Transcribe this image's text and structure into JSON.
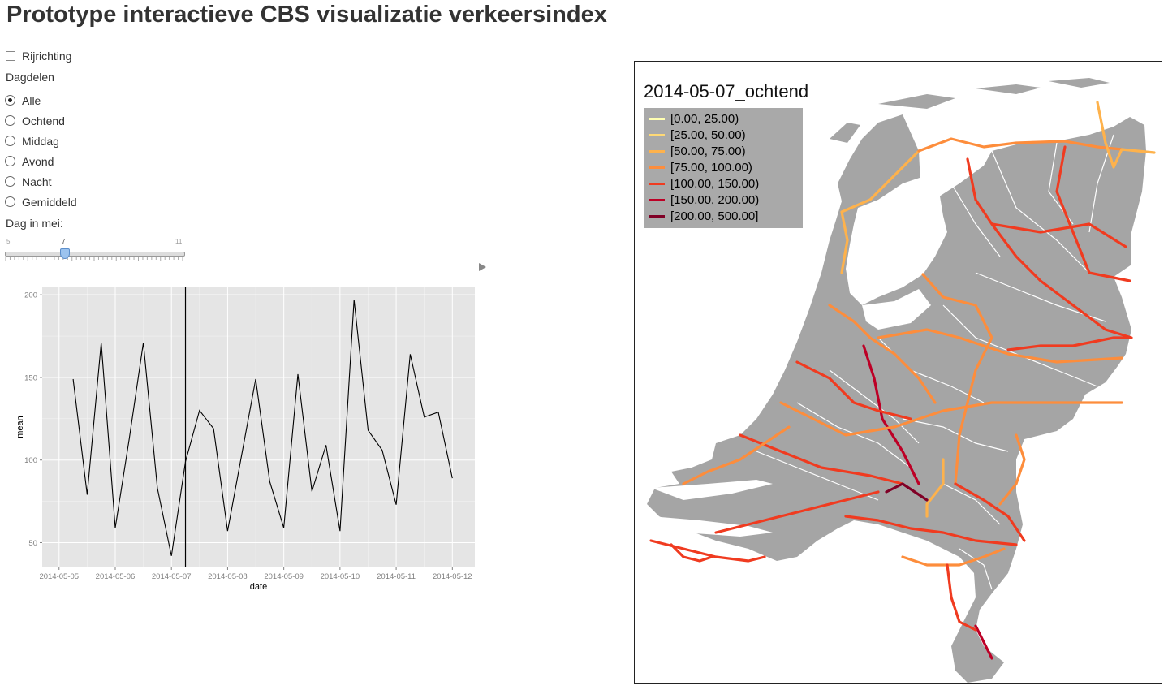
{
  "title": "Prototype interactieve CBS visualizatie verkeersindex",
  "rijrichting": {
    "label": "Rijrichting",
    "checked": false
  },
  "dagdelen": {
    "label": "Dagdelen",
    "options": [
      "Alle",
      "Ochtend",
      "Middag",
      "Avond",
      "Nacht",
      "Gemiddeld"
    ],
    "selected": "Alle"
  },
  "slider": {
    "label": "Dag in mei:",
    "min": "5",
    "max": "11",
    "value": "7"
  },
  "chart_data": {
    "type": "line",
    "xlabel": "date",
    "ylabel": "mean",
    "x_ticks": [
      "2014-05-05",
      "2014-05-06",
      "2014-05-07",
      "2014-05-08",
      "2014-05-09",
      "2014-05-10",
      "2014-05-11",
      "2014-05-12"
    ],
    "y_ticks": [
      50,
      100,
      150,
      200
    ],
    "xlim": [
      -0.3,
      7.4
    ],
    "ylim": [
      35,
      205
    ],
    "vline_day": 2.25,
    "x": [
      0.25,
      0.5,
      0.75,
      1.0,
      1.25,
      1.5,
      1.75,
      2.0,
      2.25,
      2.5,
      2.75,
      3.0,
      3.25,
      3.5,
      3.75,
      4.0,
      4.25,
      4.5,
      4.75,
      5.0,
      5.25,
      5.5,
      5.75,
      6.0,
      6.25,
      6.5,
      6.75,
      7.0
    ],
    "values": [
      149,
      79,
      171,
      59,
      113,
      171,
      83,
      42,
      99,
      130,
      119,
      57,
      103,
      149,
      87,
      59,
      152,
      81,
      109,
      57,
      197,
      118,
      106,
      73,
      164,
      126,
      129,
      89
    ],
    "grid": true
  },
  "map": {
    "title": "2014-05-07_ochtend",
    "land_color": "#a5a5a5",
    "legend": [
      {
        "label": "[0.00, 25.00)",
        "color": "#ffffb2"
      },
      {
        "label": "[25.00, 50.00)",
        "color": "#fed976"
      },
      {
        "label": "[50.00, 75.00)",
        "color": "#feb24c"
      },
      {
        "label": "[75.00, 100.00)",
        "color": "#fd8d3c"
      },
      {
        "label": "[100.00, 150.00)",
        "color": "#f03b20"
      },
      {
        "label": "[150.00, 200.00)",
        "color": "#bd0026"
      },
      {
        "label": "[200.00, 500.00]",
        "color": "#800026"
      }
    ]
  }
}
